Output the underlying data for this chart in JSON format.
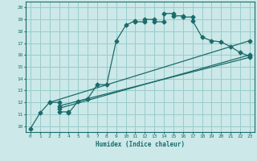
{
  "xlabel": "Humidex (Indice chaleur)",
  "bg_color": "#cce8e8",
  "grid_color": "#99cccc",
  "line_color": "#1a6b6b",
  "xlim": [
    -0.5,
    23.5
  ],
  "ylim": [
    9.5,
    20.5
  ],
  "xticks": [
    0,
    1,
    2,
    3,
    4,
    5,
    6,
    7,
    8,
    9,
    10,
    11,
    12,
    13,
    14,
    15,
    16,
    17,
    18,
    19,
    20,
    21,
    22,
    23
  ],
  "yticks": [
    10,
    11,
    12,
    13,
    14,
    15,
    16,
    17,
    18,
    19,
    20
  ],
  "main_line_x": [
    0,
    1,
    2,
    3,
    3,
    4,
    4,
    5,
    6,
    6,
    7,
    8,
    9,
    10,
    11,
    11,
    12,
    12,
    13,
    13,
    14,
    14,
    15,
    15,
    16,
    16,
    17,
    17,
    18,
    19,
    20,
    21,
    22,
    23
  ],
  "main_line_y": [
    9.8,
    11.1,
    12.0,
    12.0,
    11.2,
    11.2,
    11.1,
    12.1,
    12.3,
    12.3,
    13.5,
    13.5,
    17.2,
    18.5,
    18.9,
    18.8,
    18.8,
    19.0,
    19.0,
    18.8,
    18.8,
    19.5,
    19.5,
    19.3,
    19.3,
    19.2,
    19.2,
    18.9,
    17.5,
    17.2,
    17.1,
    16.7,
    16.2,
    15.9
  ],
  "line2_x": [
    2,
    23
  ],
  "line2_y": [
    12.0,
    17.2
  ],
  "line3_x": [
    3,
    23
  ],
  "line3_y": [
    11.5,
    16.0
  ],
  "line4_x": [
    3,
    23
  ],
  "line4_y": [
    11.7,
    15.8
  ]
}
